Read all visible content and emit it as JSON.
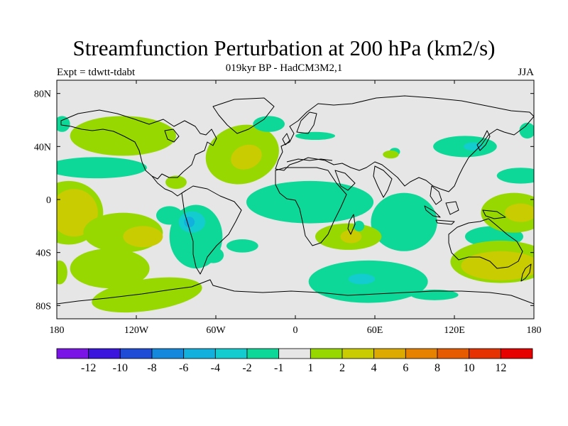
{
  "title": "Streamfunction Perturbation at 200 hPa (km2/s)",
  "subtitle": "019kyr BP - HadCM3M2,1",
  "left_label": "Expt = tdwtt-tdabt",
  "right_label": "JJA",
  "chart_data": {
    "type": "heatmap",
    "title": "Streamfunction Perturbation at 200 hPa (km2/s)",
    "variable": "streamfunction perturbation",
    "level": "200 hPa",
    "units": "km2/s",
    "season": "JJA",
    "experiment": "tdwtt-tdabt",
    "period": "019kyr BP",
    "model": "HadCM3M2,1",
    "x_range": [
      -180,
      180
    ],
    "y_range": [
      -90,
      90
    ],
    "x_ticks": [
      {
        "value": -180,
        "label": "180"
      },
      {
        "value": -120,
        "label": "120W"
      },
      {
        "value": -60,
        "label": "60W"
      },
      {
        "value": 0,
        "label": "0"
      },
      {
        "value": 60,
        "label": "60E"
      },
      {
        "value": 120,
        "label": "120E"
      },
      {
        "value": 180,
        "label": "180"
      }
    ],
    "y_ticks": [
      {
        "value": 80,
        "label": "80N"
      },
      {
        "value": 40,
        "label": "40N"
      },
      {
        "value": 0,
        "label": "0"
      },
      {
        "value": -40,
        "label": "40S"
      },
      {
        "value": -80,
        "label": "80S"
      }
    ],
    "colorbar": {
      "labels": [
        "-12",
        "-10",
        "-8",
        "-6",
        "-4",
        "-2",
        "-1",
        "1",
        "2",
        "4",
        "6",
        "8",
        "10",
        "12"
      ],
      "colors": [
        "#7a14e6",
        "#3a14dc",
        "#1e4cd6",
        "#1488dc",
        "#12b0dc",
        "#12ccd0",
        "#0ed898",
        "#e6e6e6",
        "#96d800",
        "#c8cc00",
        "#dcaa00",
        "#e68200",
        "#e65a00",
        "#e63200",
        "#e60000"
      ]
    },
    "regions": [
      {
        "level": 1,
        "lon": -171,
        "lat": -10,
        "rlon": 26,
        "rlat": 24,
        "rot": 0
      },
      {
        "level": 2,
        "lon": -167,
        "lat": -10,
        "rlon": 18,
        "rlat": 18,
        "rot": 0
      },
      {
        "level": 1,
        "lon": -130,
        "lat": -25,
        "rlon": 30,
        "rlat": 15,
        "rot": 0
      },
      {
        "level": 2,
        "lon": -115,
        "lat": -28,
        "rlon": 15,
        "rlat": 8,
        "rot": 0
      },
      {
        "level": 1,
        "lon": -130,
        "lat": 48,
        "rlon": 40,
        "rlat": 15,
        "rot": 0
      },
      {
        "level": 1,
        "lon": -40,
        "lat": 34,
        "rlon": 28,
        "rlat": 22,
        "rot": -15
      },
      {
        "level": 2,
        "lon": -37,
        "lat": 32,
        "rlon": 12,
        "rlat": 9,
        "rot": -20
      },
      {
        "level": 1,
        "lon": -90,
        "lat": 13,
        "rlon": 8,
        "rlat": 5,
        "rot": 0
      },
      {
        "level": 1,
        "lon": -140,
        "lat": -52,
        "rlon": 30,
        "rlat": 15,
        "rot": 0
      },
      {
        "level": 1,
        "lon": -112,
        "lat": -72,
        "rlon": 42,
        "rlat": 12,
        "rot": -8
      },
      {
        "level": 1,
        "lon": -178,
        "lat": -55,
        "rlon": 6,
        "rlat": 9,
        "rot": 0
      },
      {
        "level": -1,
        "lon": -150,
        "lat": 24,
        "rlon": 38,
        "rlat": 8,
        "rot": 0
      },
      {
        "level": -1,
        "lon": -176,
        "lat": 57,
        "rlon": 6,
        "rlat": 6,
        "rot": 0
      },
      {
        "level": -1,
        "lon": -95,
        "lat": -12,
        "rlon": 10,
        "rlat": 7,
        "rot": 0
      },
      {
        "level": -1,
        "lon": -75,
        "lat": -28,
        "rlon": 20,
        "rlat": 24,
        "rot": 0
      },
      {
        "level": -2,
        "lon": -78,
        "lat": -17,
        "rlon": 10,
        "rlat": 8,
        "rot": 0
      },
      {
        "level": -4,
        "lon": -80,
        "lat": -17,
        "rlon": 4,
        "rlat": 4,
        "rot": 0
      },
      {
        "level": -1,
        "lon": -62,
        "lat": -42,
        "rlon": 8,
        "rlat": 6,
        "rot": 0
      },
      {
        "level": -1,
        "lon": -40,
        "lat": -35,
        "rlon": 12,
        "rlat": 5,
        "rot": 0
      },
      {
        "level": -1,
        "lon": 11,
        "lat": -2,
        "rlon": 48,
        "rlat": 16,
        "rot": 0
      },
      {
        "level": -1,
        "lon": -20,
        "lat": 57,
        "rlon": 12,
        "rlat": 6,
        "rot": 0
      },
      {
        "level": -1,
        "lon": 15,
        "lat": 48,
        "rlon": 15,
        "rlat": 3,
        "rot": 0
      },
      {
        "level": -1,
        "lon": 75,
        "lat": 36,
        "rlon": 4,
        "rlat": 3,
        "rot": 0
      },
      {
        "level": -1,
        "lon": 128,
        "lat": 40,
        "rlon": 24,
        "rlat": 8,
        "rot": 0
      },
      {
        "level": -2,
        "lon": 134,
        "lat": 40,
        "rlon": 7,
        "rlat": 3,
        "rot": 0
      },
      {
        "level": -1,
        "lon": 175,
        "lat": 52,
        "rlon": 6,
        "rlat": 6,
        "rot": 0
      },
      {
        "level": -1,
        "lon": 170,
        "lat": 18,
        "rlon": 18,
        "rlat": 6,
        "rot": 0
      },
      {
        "level": -1,
        "lon": 82,
        "lat": -17,
        "rlon": 25,
        "rlat": 22,
        "rot": 0
      },
      {
        "level": -1,
        "lon": 55,
        "lat": -62,
        "rlon": 45,
        "rlat": 16,
        "rot": 0
      },
      {
        "level": -2,
        "lon": 50,
        "lat": -60,
        "rlon": 10,
        "rlat": 4,
        "rot": 0
      },
      {
        "level": -1,
        "lon": 105,
        "lat": -72,
        "rlon": 18,
        "rlat": 4,
        "rot": 0
      },
      {
        "level": -1,
        "lon": 150,
        "lat": -28,
        "rlon": 22,
        "rlat": 8,
        "rot": 0
      },
      {
        "level": 1,
        "lon": 155,
        "lat": -47,
        "rlon": 38,
        "rlat": 16,
        "rot": 0
      },
      {
        "level": 2,
        "lon": 155,
        "lat": -50,
        "rlon": 30,
        "rlat": 11,
        "rot": 0
      },
      {
        "level": 1,
        "lon": 165,
        "lat": -10,
        "rlon": 25,
        "rlat": 15,
        "rot": 0
      },
      {
        "level": 2,
        "lon": 170,
        "lat": -10,
        "rlon": 12,
        "rlat": 7,
        "rot": 0
      },
      {
        "level": 1,
        "lon": 40,
        "lat": -28,
        "rlon": 25,
        "rlat": 10,
        "rot": 0
      },
      {
        "level": 2,
        "lon": 42,
        "lat": -28,
        "rlon": 8,
        "rlat": 5,
        "rot": 0
      },
      {
        "level": -1,
        "lon": 48,
        "lat": -20,
        "rlon": 4,
        "rlat": 4,
        "rot": 0
      },
      {
        "level": 1,
        "lon": 72,
        "lat": 34,
        "rlon": 6,
        "rlat": 3,
        "rot": 0
      }
    ]
  }
}
